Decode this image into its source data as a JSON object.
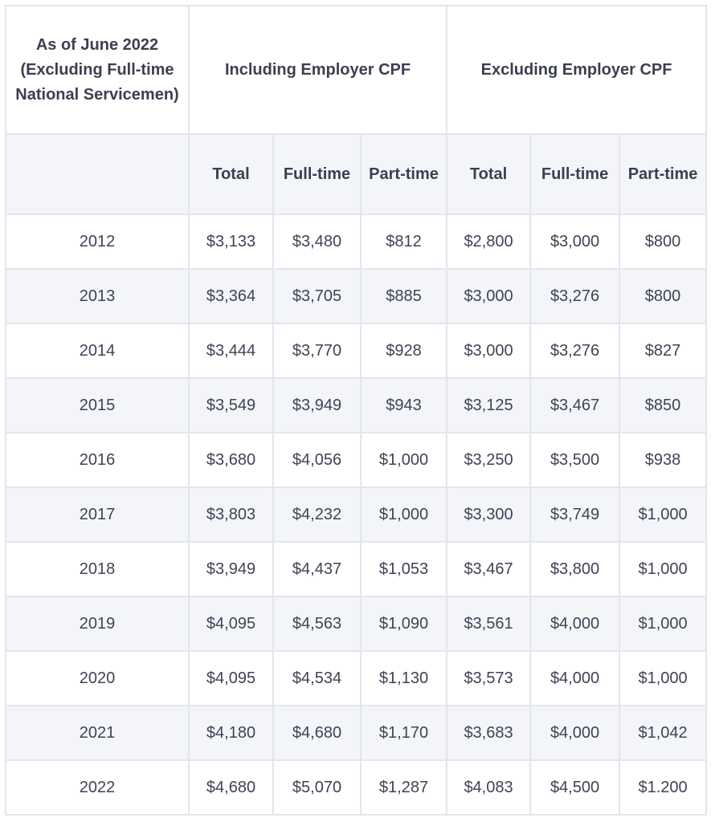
{
  "header": {
    "corner_label": "As of June 2022 (Excluding Full-time National Servicemen)",
    "group_including": "Including Employer CPF",
    "group_excluding": "Excluding Employer CPF",
    "sub_total": "Total",
    "sub_full_time": "Full-time",
    "sub_part_time": "Part-time"
  },
  "rows": [
    {
      "year": "2012",
      "inc_total": "$3,133",
      "inc_full": "$3,480",
      "inc_part": "$812",
      "exc_total": "$2,800",
      "exc_full": "$3,000",
      "exc_part": "$800"
    },
    {
      "year": "2013",
      "inc_total": "$3,364",
      "inc_full": "$3,705",
      "inc_part": "$885",
      "exc_total": "$3,000",
      "exc_full": "$3,276",
      "exc_part": "$800"
    },
    {
      "year": "2014",
      "inc_total": "$3,444",
      "inc_full": "$3,770",
      "inc_part": "$928",
      "exc_total": "$3,000",
      "exc_full": "$3,276",
      "exc_part": "$827"
    },
    {
      "year": "2015",
      "inc_total": "$3,549",
      "inc_full": "$3,949",
      "inc_part": "$943",
      "exc_total": "$3,125",
      "exc_full": "$3,467",
      "exc_part": "$850"
    },
    {
      "year": "2016",
      "inc_total": "$3,680",
      "inc_full": "$4,056",
      "inc_part": "$1,000",
      "exc_total": "$3,250",
      "exc_full": "$3,500",
      "exc_part": "$938"
    },
    {
      "year": "2017",
      "inc_total": "$3,803",
      "inc_full": "$4,232",
      "inc_part": "$1,000",
      "exc_total": "$3,300",
      "exc_full": "$3,749",
      "exc_part": "$1,000"
    },
    {
      "year": "2018",
      "inc_total": "$3,949",
      "inc_full": "$4,437",
      "inc_part": "$1,053",
      "exc_total": "$3,467",
      "exc_full": "$3,800",
      "exc_part": "$1,000"
    },
    {
      "year": "2019",
      "inc_total": "$4,095",
      "inc_full": "$4,563",
      "inc_part": "$1,090",
      "exc_total": "$3,561",
      "exc_full": "$4,000",
      "exc_part": "$1,000"
    },
    {
      "year": "2020",
      "inc_total": "$4,095",
      "inc_full": "$4,534",
      "inc_part": "$1,130",
      "exc_total": "$3,573",
      "exc_full": "$4,000",
      "exc_part": "$1,000"
    },
    {
      "year": "2021",
      "inc_total": "$4,180",
      "inc_full": "$4,680",
      "inc_part": "$1,170",
      "exc_total": "$3,683",
      "exc_full": "$4,000",
      "exc_part": "$1,042"
    },
    {
      "year": "2022",
      "inc_total": "$4,680",
      "inc_full": "$5,070",
      "inc_part": "$1,287",
      "exc_total": "$4,083",
      "exc_full": "$4,500",
      "exc_part": "$1.200"
    }
  ]
}
